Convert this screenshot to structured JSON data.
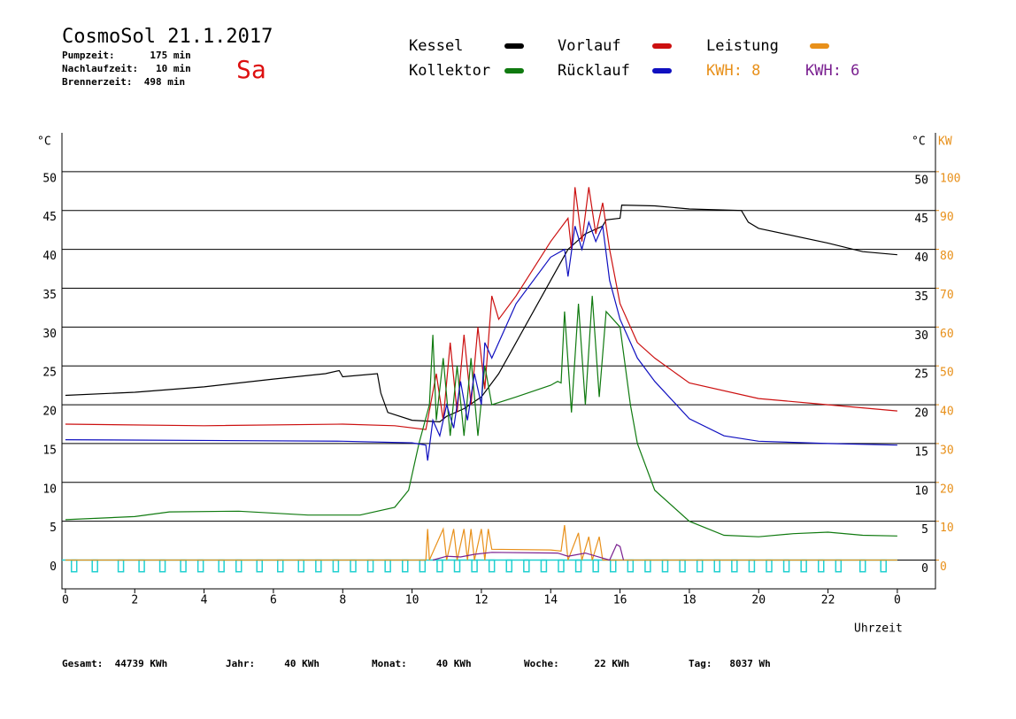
{
  "header": {
    "title": "CosmoSol 21.1.2017",
    "day": "Sa",
    "info": [
      "Pumpzeit:      175 min",
      "Nachlaufzeit:   10 min",
      "Brennerzeit:  498 min"
    ],
    "kwh_labels": [
      {
        "text": "KWH: 8",
        "color": "#e8901a"
      },
      {
        "text": "KWH: 6",
        "color": "#7a2090"
      }
    ]
  },
  "footer": [
    "Gesamt:  44739 KWh",
    "Jahr:     40 KWh",
    "Monat:     40 KWh",
    "Woche:      22 KWh",
    "Tag:   8037 Wh"
  ],
  "chart_data": {
    "type": "line",
    "xlabel": "Uhrzeit",
    "ylabel": "°C",
    "y2label_c": "°C",
    "y2label": "KW",
    "xlim": [
      -0.1,
      25.1
    ],
    "xticks": [
      0,
      2,
      4,
      6,
      8,
      10,
      12,
      14,
      16,
      18,
      20,
      22,
      {
        "value": 24,
        "label": "0"
      }
    ],
    "ylim": [
      -3.7,
      55
    ],
    "yticks": [
      0,
      5,
      10,
      15,
      20,
      25,
      30,
      35,
      40,
      45,
      50
    ],
    "y2lim": [
      -7.4,
      110
    ],
    "y2ticks": [
      0,
      10,
      20,
      30,
      40,
      50,
      60,
      70,
      80,
      90,
      100
    ],
    "grid": true,
    "series": [
      {
        "name": "Kessel",
        "color": "#000000",
        "x": [
          0,
          2,
          4,
          6,
          7.5,
          7.9,
          8,
          9,
          9.1,
          9.3,
          10,
          10.8,
          11,
          11.5,
          12,
          12.5,
          13,
          14,
          14.5,
          15,
          15.5,
          15.6,
          16,
          16.05,
          17,
          18,
          19.5,
          19.7,
          20,
          22,
          23,
          24
        ],
        "values": [
          21.2,
          21.6,
          22.3,
          23.3,
          24,
          24.4,
          23.6,
          24,
          21.5,
          19,
          18,
          17.8,
          18.5,
          19.5,
          21,
          24,
          28,
          36,
          40,
          42,
          43,
          43.8,
          44,
          45.7,
          45.6,
          45.2,
          45,
          43.5,
          42.7,
          40.8,
          39.7,
          39.3
        ]
      },
      {
        "name": "Vorlauf",
        "color": "#cc1010",
        "x": [
          0,
          4,
          8,
          9.5,
          10.4,
          10.7,
          10.9,
          11.1,
          11.3,
          11.5,
          11.7,
          11.9,
          12.1,
          12.3,
          12.5,
          13,
          14,
          14.5,
          14.6,
          14.7,
          14.9,
          15.1,
          15.3,
          15.5,
          15.7,
          16,
          16.5,
          17,
          18,
          20,
          22,
          24
        ],
        "values": [
          17.5,
          17.3,
          17.5,
          17.3,
          16.8,
          24,
          18,
          28,
          19,
          29,
          20,
          30,
          22,
          34,
          31,
          34,
          41,
          44,
          40,
          48,
          41,
          48,
          42,
          46,
          40,
          33,
          28,
          26,
          22.8,
          20.8,
          20,
          19.2
        ]
      },
      {
        "name": "Leistung",
        "color": "#e8901a",
        "axis": "y2",
        "x": [
          0,
          10.4,
          10.45,
          10.5,
          10.9,
          11,
          11.2,
          11.3,
          11.5,
          11.6,
          11.7,
          11.8,
          12,
          12.1,
          12.2,
          12.3,
          14,
          14.3,
          14.4,
          14.5,
          14.8,
          14.9,
          15.1,
          15.2,
          15.4,
          15.5,
          24
        ],
        "values": [
          0,
          0,
          8,
          0,
          8,
          0,
          8,
          0,
          8,
          0,
          8,
          0,
          8,
          0,
          8,
          2.8,
          2.6,
          2.3,
          9,
          0,
          7,
          0,
          6,
          0,
          6,
          0,
          0
        ]
      },
      {
        "name": "Kollektor",
        "color": "#107a10",
        "x": [
          0,
          2,
          3,
          5,
          7,
          8.5,
          9.5,
          9.9,
          10.2,
          10.5,
          10.6,
          10.7,
          10.9,
          11.1,
          11.3,
          11.5,
          11.7,
          11.9,
          12.1,
          12.3,
          13,
          14,
          14.2,
          14.3,
          14.4,
          14.6,
          14.8,
          15,
          15.2,
          15.4,
          15.6,
          16,
          16.3,
          16.5,
          17,
          18,
          19,
          20,
          21,
          22,
          23,
          24
        ],
        "values": [
          5.2,
          5.6,
          6.2,
          6.3,
          5.8,
          5.8,
          6.8,
          9,
          15,
          20,
          29,
          18,
          26,
          16,
          25,
          16,
          26,
          16,
          25,
          20,
          21,
          22.5,
          23,
          22.8,
          32,
          19,
          33,
          20,
          34,
          21,
          32,
          30,
          20,
          15,
          9,
          5,
          3.2,
          3,
          3.4,
          3.6,
          3.2,
          3.1
        ]
      },
      {
        "name": "Rücklauf",
        "color": "#1010c0",
        "x": [
          0,
          8,
          10,
          10.4,
          10.45,
          10.6,
          10.8,
          11,
          11.2,
          11.4,
          11.6,
          11.8,
          12,
          12.1,
          12.3,
          12.5,
          13,
          14,
          14.4,
          14.5,
          14.7,
          14.9,
          15.1,
          15.3,
          15.5,
          15.7,
          16,
          16.5,
          17,
          18,
          19,
          20,
          22,
          24
        ],
        "values": [
          15.5,
          15.3,
          15.1,
          14.8,
          12.8,
          18,
          16,
          20,
          17,
          23,
          18,
          24,
          20,
          28,
          26,
          28,
          33,
          39,
          40,
          36.5,
          43,
          40,
          43.5,
          41,
          43,
          36,
          31,
          26,
          23,
          18.2,
          16,
          15.3,
          15,
          14.8
        ]
      },
      {
        "color": "#7a2090",
        "axis": "y2",
        "x": [
          10.6,
          11,
          11.4,
          11.8,
          12.3,
          14.2,
          14.5,
          15,
          15.5,
          15.7,
          15.9,
          16,
          16.1
        ],
        "values": [
          0,
          1,
          0.8,
          1.5,
          2,
          1.8,
          1,
          1.8,
          0.5,
          0,
          4,
          3.5,
          0
        ]
      }
    ],
    "pulses": {
      "color": "#20d0d0",
      "x": [
        0.25,
        0.85,
        1.6,
        2.2,
        2.8,
        3.4,
        3.9,
        4.5,
        5.0,
        5.6,
        6.2,
        6.8,
        7.3,
        7.8,
        8.3,
        8.8,
        9.3,
        9.8,
        10.3,
        10.8,
        11.3,
        11.8,
        12.3,
        12.8,
        13.3,
        13.8,
        14.3,
        14.8,
        15.3,
        15.8,
        16.3,
        16.8,
        17.3,
        17.8,
        18.3,
        18.8,
        19.3,
        19.8,
        20.3,
        20.8,
        21.3,
        21.8,
        22.3,
        23.0,
        23.6
      ],
      "values": [
        -1.5,
        -1.5,
        -1.5,
        -1.5,
        -1.5,
        -1.5,
        -1.5,
        -1.5,
        -1.5,
        -1.5,
        -1.5,
        -1.5,
        -1.5,
        -1.5,
        -1.5,
        -1.5,
        -1.5,
        -1.5,
        -1.5,
        -1.5,
        -1.5,
        -1.5,
        -1.5,
        -1.5,
        -1.5,
        -1.5,
        -1.5,
        -1.5,
        -1.5,
        -1.5,
        -1.5,
        -1.5,
        -1.5,
        -1.5,
        -1.5,
        -1.5,
        -1.5,
        -1.5,
        -1.5,
        -1.5,
        -1.5,
        -1.5,
        -1.5,
        -1.5,
        -1.5
      ]
    }
  }
}
